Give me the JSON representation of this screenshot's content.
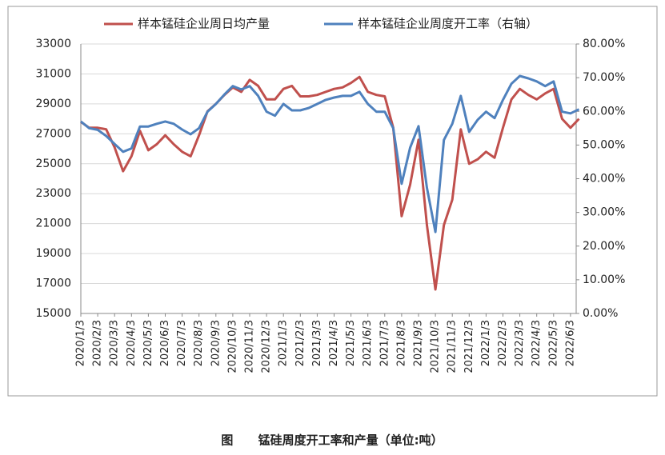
{
  "chart_data": {
    "type": "line",
    "categories": [
      "2020/1/3",
      null,
      "2020/2/3",
      null,
      "2020/3/3",
      null,
      "2020/4/3",
      null,
      "2020/5/3",
      null,
      "2020/6/3",
      null,
      "2020/7/3",
      null,
      "2020/8/3",
      null,
      "2020/9/3",
      null,
      "2020/10/3",
      null,
      "2020/11/3",
      null,
      "2020/12/3",
      null,
      "2021/1/3",
      null,
      "2021/2/3",
      null,
      "2021/3/3",
      null,
      "2021/4/3",
      null,
      "2021/5/3",
      null,
      "2021/6/3",
      null,
      "2021/7/3",
      null,
      "2021/8/3",
      null,
      "2021/9/3",
      null,
      "2021/10/3",
      null,
      "2021/11/3",
      null,
      "2021/12/3",
      null,
      "2022/1/3",
      null,
      "2022/2/3",
      null,
      "2022/3/3",
      null,
      "2022/4/3",
      null,
      "2022/5/3",
      null,
      "2022/6/3",
      null
    ],
    "series": [
      {
        "name": "样本锰硅企业周日均产量",
        "color": "#c0504d",
        "values": [
          27800,
          27400,
          27400,
          27300,
          26100,
          24500,
          25500,
          27200,
          25900,
          26300,
          26900,
          26300,
          25800,
          25500,
          26900,
          28500,
          29000,
          29600,
          30100,
          29800,
          30600,
          30200,
          29300,
          29300,
          30000,
          30200,
          29500,
          29500,
          29600,
          29800,
          30000,
          30100,
          30400,
          30800,
          29800,
          29600,
          29500,
          27400,
          21500,
          23600,
          26600,
          20900,
          16600,
          20900,
          22600,
          27300,
          25000,
          25300,
          25800,
          25400,
          27400,
          29300,
          30000,
          29600,
          29300,
          29700,
          30000,
          28000,
          27400,
          28000
        ]
      },
      {
        "name": "样本锰硅企业周度开工率（右轴）",
        "color": "#4f81bd",
        "axis": "y2",
        "values": [
          57,
          55,
          54.5,
          52.7,
          50.3,
          48,
          49,
          55.5,
          55.5,
          56.3,
          57,
          56.3,
          54.6,
          53.2,
          55,
          59.9,
          62.2,
          65,
          67.5,
          66.5,
          67.5,
          64.6,
          59.9,
          58.7,
          62.2,
          60.3,
          60.3,
          61,
          62.2,
          63.4,
          64.1,
          64.6,
          64.6,
          65.8,
          62.2,
          59.9,
          59.9,
          55,
          38.5,
          49.2,
          55.6,
          37.3,
          24.2,
          51.5,
          56.3,
          64.6,
          53.9,
          57.5,
          59.9,
          58,
          63.4,
          68.2,
          70.5,
          69.8,
          68.9,
          67.5,
          68.9,
          59.9,
          59.4,
          60.6
        ]
      }
    ],
    "ylim": [
      15000,
      33000
    ],
    "yticks": [
      15000,
      17000,
      19000,
      21000,
      23000,
      25000,
      27000,
      29000,
      31000,
      33000
    ],
    "y2lim": [
      0,
      80
    ],
    "y2ticks": [
      {
        "value": 0,
        "label": "0.00%"
      },
      {
        "value": 10,
        "label": "10.00%"
      },
      {
        "value": 20,
        "label": "20.00%"
      },
      {
        "value": 30,
        "label": "30.00%"
      },
      {
        "value": 40,
        "label": "40.00%"
      },
      {
        "value": 50,
        "label": "50.00%"
      },
      {
        "value": 60,
        "label": "60.00%"
      },
      {
        "value": 70,
        "label": "70.00%"
      },
      {
        "value": 80,
        "label": "80.00%"
      }
    ],
    "grid": true,
    "legend": "top",
    "caption": "图      锰硅周度开工率和产量（单位:吨）"
  }
}
